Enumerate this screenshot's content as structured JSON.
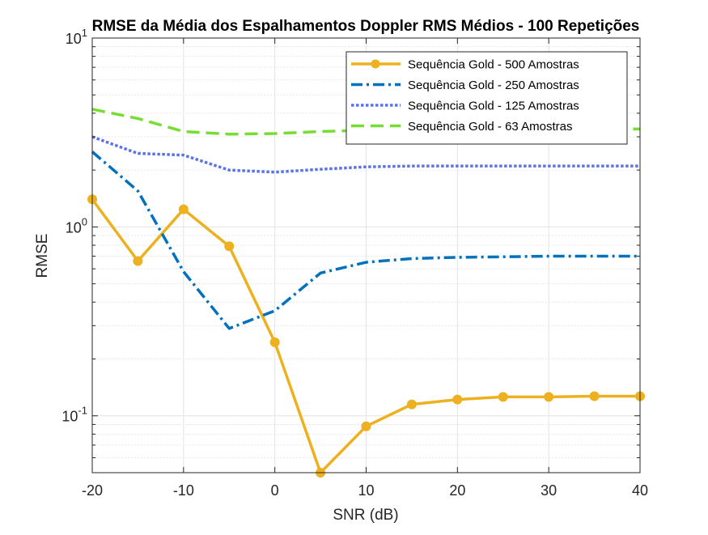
{
  "chart_data": {
    "type": "line",
    "title": "RMSE da Média dos Espalhamentos Doppler RMS Médios - 100 Repetições",
    "xlabel": "SNR (dB)",
    "ylabel": "RMSE",
    "xlim": [
      -20,
      40
    ],
    "ylim": [
      0.05,
      10
    ],
    "yscale": "log",
    "grid": true,
    "minor_grid": true,
    "legend_position": "top-right",
    "x_ticks": [
      -20,
      -10,
      0,
      10,
      20,
      30,
      40
    ],
    "x_tick_labels": [
      "-20",
      "-10",
      "0",
      "10",
      "20",
      "30",
      "40"
    ],
    "y_ticks": [
      {
        "value": 10,
        "base": "10",
        "exp": "1"
      },
      {
        "value": 1,
        "base": "10",
        "exp": "0"
      },
      {
        "value": 0.1,
        "base": "10",
        "exp": "-1"
      }
    ],
    "x": [
      -20,
      -15,
      -10,
      -5,
      0,
      5,
      10,
      15,
      20,
      25,
      30,
      35,
      40
    ],
    "series": [
      {
        "name": "Sequência Gold - 500 Amostras",
        "color": "#EDB120",
        "style": "solid-marker",
        "values": [
          1.4,
          0.66,
          1.24,
          0.79,
          0.245,
          0.05,
          0.088,
          0.115,
          0.122,
          0.126,
          0.126,
          0.127,
          0.127
        ]
      },
      {
        "name": "Sequência Gold - 250 Amostras",
        "color": "#0072BD",
        "style": "dash-dot",
        "values": [
          2.5,
          1.55,
          0.58,
          0.29,
          0.36,
          0.57,
          0.65,
          0.68,
          0.69,
          0.695,
          0.7,
          0.7,
          0.7
        ]
      },
      {
        "name": "Sequência Gold - 125 Amostras",
        "color": "#5C73E6",
        "style": "dotted",
        "values": [
          3.0,
          2.45,
          2.4,
          2.0,
          1.95,
          2.02,
          2.08,
          2.1,
          2.1,
          2.1,
          2.1,
          2.1,
          2.1
        ]
      },
      {
        "name": "Sequência Gold - 63 Amostras",
        "color": "#77DD33",
        "style": "dashed",
        "values": [
          4.2,
          3.75,
          3.2,
          3.1,
          3.12,
          3.2,
          3.25,
          3.27,
          3.28,
          3.28,
          3.29,
          3.29,
          3.3
        ]
      }
    ]
  }
}
